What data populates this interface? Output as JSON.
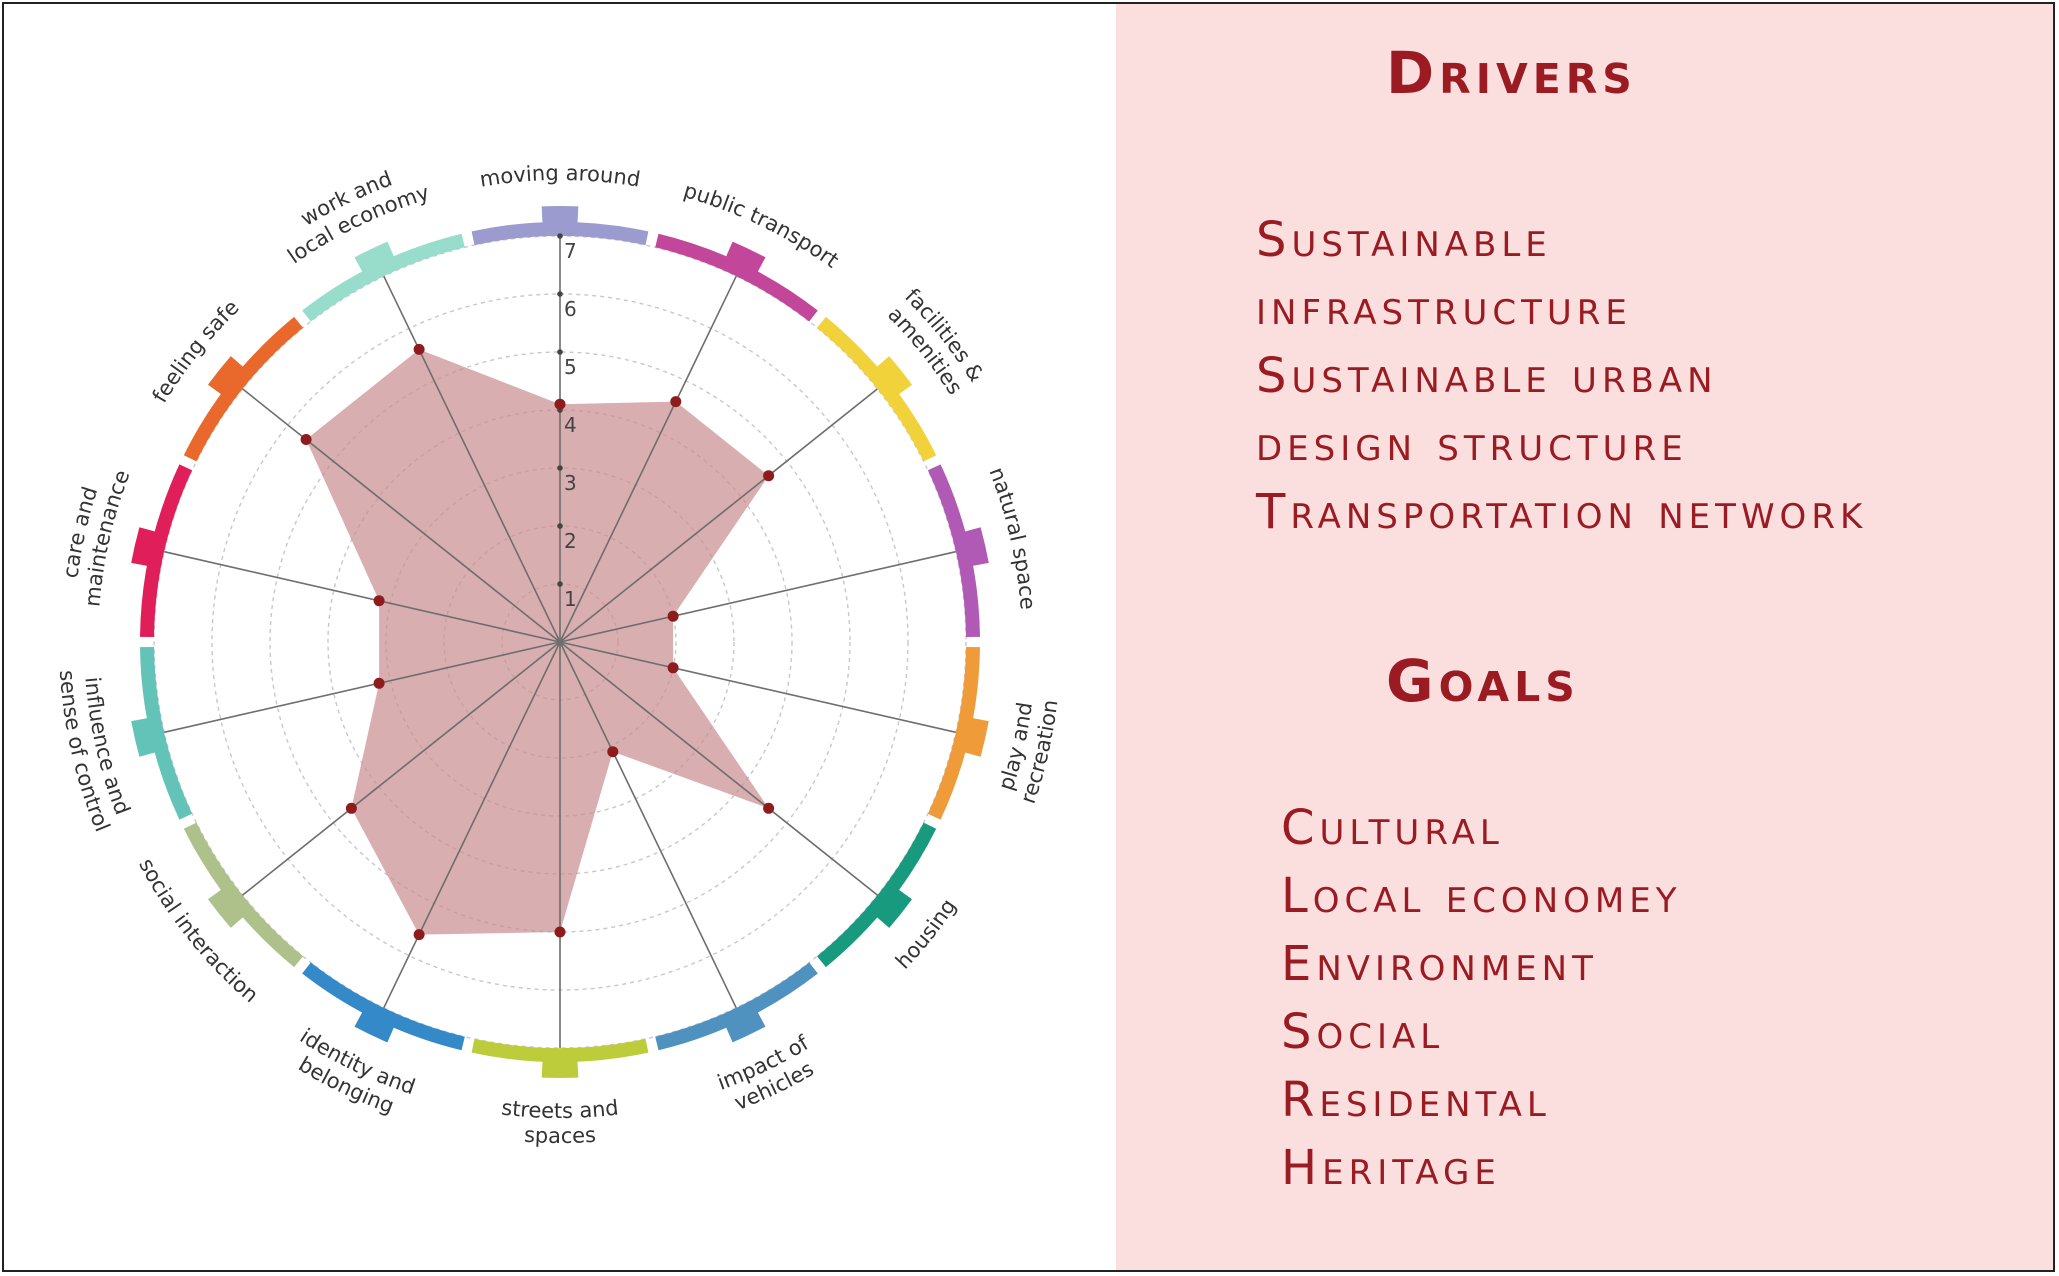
{
  "chart_data": {
    "type": "radar",
    "scale": {
      "min": 0,
      "max": 7,
      "ticks": [
        1,
        2,
        3,
        4,
        5,
        6,
        7
      ]
    },
    "categories": [
      {
        "label": "moving around",
        "value": 4.1,
        "color": "#9b9bcf"
      },
      {
        "label": "public transport",
        "value": 4.6,
        "color": "#c2479b"
      },
      {
        "label": "facilities & amenities",
        "value": 4.6,
        "color": "#f2d23a"
      },
      {
        "label": "natural space",
        "value": 2.0,
        "color": "#b15ab5"
      },
      {
        "label": "play and recreation",
        "value": 2.0,
        "color": "#ef9b3a"
      },
      {
        "label": "housing",
        "value": 4.6,
        "color": "#179a7e"
      },
      {
        "label": "impact of vehicles",
        "value": 2.1,
        "color": "#4f92c0"
      },
      {
        "label": "streets and spaces",
        "value": 5.0,
        "color": "#bccc3a"
      },
      {
        "label": "identity and belonging",
        "value": 5.6,
        "color": "#3489c8"
      },
      {
        "label": "social interaction",
        "value": 4.6,
        "color": "#aec18a"
      },
      {
        "label": "influence and sense of control",
        "value": 3.2,
        "color": "#63c3b8"
      },
      {
        "label": "care and maintenance",
        "value": 3.2,
        "color": "#e01e5a"
      },
      {
        "label": "feeling safe",
        "value": 5.6,
        "color": "#e9692c"
      },
      {
        "label": "work and local economy",
        "value": 5.6,
        "color": "#98dccb"
      }
    ],
    "fill_color": "#c98c8e",
    "point_color": "#8e1c1c"
  },
  "drivers": {
    "title": "Drivers",
    "items": [
      "Sustainable",
      "infrastructure",
      "Sustainable urban",
      "design structure",
      "Transportation network"
    ]
  },
  "goals": {
    "title": "Goals",
    "items": [
      "Cultural",
      "Local economey",
      "Environment",
      "Social",
      "Residental",
      "Heritage"
    ]
  },
  "colors": {
    "panel_background": "#fbdfdf",
    "heading_text": "#9b1b22"
  }
}
